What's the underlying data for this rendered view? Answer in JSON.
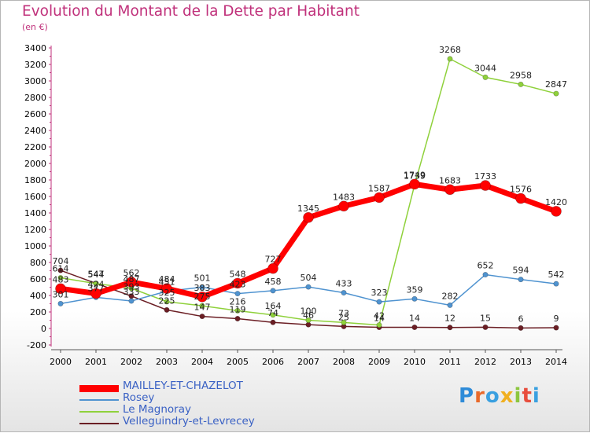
{
  "title": "Evolution du Montant de la Dette par Habitant",
  "subtitle": "(en €)",
  "logo_text": "Proxiti",
  "chart_data": {
    "type": "line",
    "title": "Evolution du Montant de la Dette par Habitant",
    "subtitle": "(en €)",
    "x": [
      "2000",
      "2001",
      "2002",
      "2003",
      "2004",
      "2005",
      "2006",
      "2007",
      "2008",
      "2009",
      "2010",
      "2011",
      "2012",
      "2013",
      "2014"
    ],
    "ylim": [
      -200,
      3400
    ],
    "yticks": [
      -200,
      0,
      200,
      400,
      600,
      800,
      1000,
      1200,
      1400,
      1600,
      1800,
      2000,
      2200,
      2400,
      2600,
      2800,
      3000,
      3200,
      3400
    ],
    "grid": false,
    "legend_position": "bottom-left",
    "series": [
      {
        "name": "MAILLEY-ET-CHAZELOT",
        "color": "#ff0000",
        "values": [
          483,
          424,
          562,
          484,
          383,
          548,
          727,
          1345,
          1483,
          1587,
          1749,
          1683,
          1733,
          1576,
          1420
        ],
        "labels": [
          "483",
          "424",
          "562",
          "484",
          "383",
          "548",
          "727",
          "1345",
          "1483",
          "1587",
          "1749",
          "1683",
          "1733",
          "1576",
          "1420"
        ]
      },
      {
        "name": "Rosey",
        "color": "#4f93d0",
        "values": [
          301,
          377,
          333,
          451,
          501,
          423,
          458,
          504,
          433,
          323,
          359,
          282,
          652,
          594,
          542
        ],
        "labels": [
          "301",
          "377",
          "333",
          "451",
          "501",
          "423",
          "458",
          "504",
          "433",
          "323",
          "359",
          "282",
          "652",
          "594",
          "542"
        ]
      },
      {
        "name": "Le Magnoray",
        "color": "#8fd13b",
        "values": [
          614,
          544,
          487,
          325,
          275,
          216,
          164,
          100,
          73,
          42,
          1739,
          3268,
          3044,
          2958,
          2847
        ],
        "labels": [
          "614",
          "544",
          "487",
          "325",
          "275",
          "216",
          "164",
          "100",
          "73",
          "42",
          "1739",
          "3268",
          "3044",
          "2958",
          "2847"
        ]
      },
      {
        "name": "Velleguindry-et-Levrecey",
        "color": "#6b1e24",
        "values": [
          704,
          547,
          393,
          225,
          147,
          119,
          74,
          46,
          25,
          14,
          14,
          12,
          15,
          6,
          9
        ],
        "labels": [
          "704",
          "547",
          "393",
          "225",
          "147",
          "119",
          "74",
          "46",
          "25",
          "14",
          "14",
          "12",
          "15",
          "6",
          "9"
        ]
      }
    ]
  }
}
